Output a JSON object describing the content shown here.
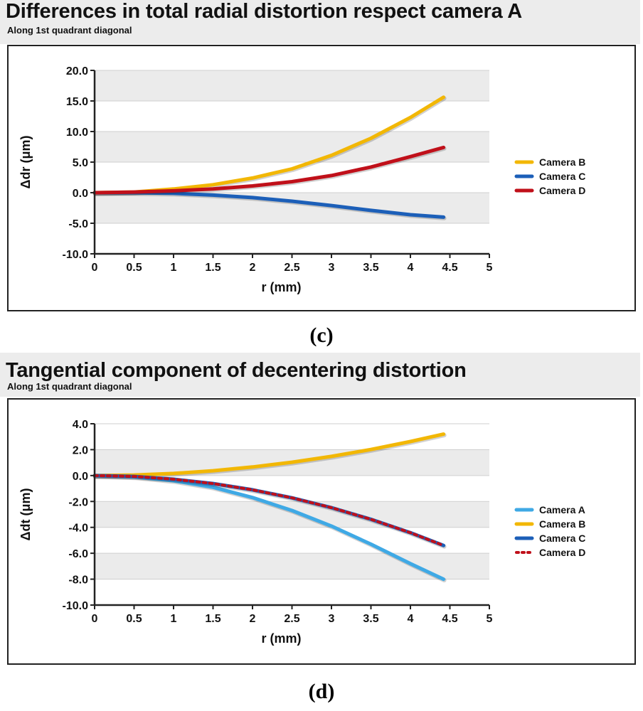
{
  "chart_data": [
    {
      "type": "line",
      "title": "Differences in total radial distortion respect camera A",
      "subtitle": "Along 1st quadrant diagonal",
      "xlabel": "r (mm)",
      "ylabel": "Δdr (μm)",
      "xlim": [
        0,
        5
      ],
      "ylim": [
        -10,
        20
      ],
      "xticks": [
        "0",
        "0.5",
        "1",
        "1.5",
        "2",
        "2.5",
        "3",
        "3.5",
        "4",
        "4.5",
        "5"
      ],
      "yticks": [
        "-10.0",
        "-5.0",
        "0.0",
        "5.0",
        "10.0",
        "15.0",
        "20.0"
      ],
      "x": [
        0,
        0.5,
        1,
        1.5,
        2,
        2.5,
        3,
        3.5,
        4,
        4.42
      ],
      "series": [
        {
          "name": "Camera B",
          "color": "#f2b705",
          "style": "solid",
          "values": [
            0,
            0.1,
            0.6,
            1.3,
            2.4,
            3.9,
            6.1,
            8.9,
            12.3,
            15.6
          ]
        },
        {
          "name": "Camera C",
          "color": "#1c5fb8",
          "style": "solid",
          "values": [
            0,
            0,
            -0.1,
            -0.4,
            -0.8,
            -1.4,
            -2.1,
            -2.9,
            -3.6,
            -4.0
          ]
        },
        {
          "name": "Camera D",
          "color": "#c0101a",
          "style": "solid",
          "values": [
            0,
            0.1,
            0.3,
            0.6,
            1.1,
            1.8,
            2.8,
            4.2,
            5.9,
            7.4
          ]
        }
      ],
      "legend": "right",
      "caption": "(c)"
    },
    {
      "type": "line",
      "title": "Tangential component of decentering distortion",
      "subtitle": "Along 1st quadrant diagonal",
      "xlabel": "r (mm)",
      "ylabel": "Δdt (μm)",
      "xlim": [
        0,
        5
      ],
      "ylim": [
        -10,
        4
      ],
      "xticks": [
        "0",
        "0.5",
        "1",
        "1.5",
        "2",
        "2.5",
        "3",
        "3.5",
        "4",
        "4.5",
        "5"
      ],
      "yticks": [
        "-10.0",
        "-8.0",
        "-6.0",
        "-4.0",
        "-2.0",
        "0.0",
        "2.0",
        "4.0"
      ],
      "x": [
        0,
        0.5,
        1,
        1.5,
        2,
        2.5,
        3,
        3.5,
        4,
        4.42
      ],
      "series": [
        {
          "name": "Camera A",
          "color": "#3fa9e5",
          "style": "solid",
          "values": [
            0,
            -0.1,
            -0.4,
            -0.9,
            -1.7,
            -2.7,
            -3.9,
            -5.3,
            -6.8,
            -8.0
          ]
        },
        {
          "name": "Camera B",
          "color": "#f2b705",
          "style": "solid",
          "values": [
            0,
            0.04,
            0.16,
            0.37,
            0.66,
            1.03,
            1.48,
            2.01,
            2.63,
            3.2
          ]
        },
        {
          "name": "Camera C",
          "color": "#1c5fb8",
          "style": "solid",
          "values": [
            0,
            -0.07,
            -0.28,
            -0.62,
            -1.1,
            -1.72,
            -2.48,
            -3.38,
            -4.41,
            -5.4
          ]
        },
        {
          "name": "Camera D",
          "color": "#c0101a",
          "style": "dotted",
          "values": [
            0,
            -0.07,
            -0.28,
            -0.62,
            -1.1,
            -1.72,
            -2.48,
            -3.38,
            -4.41,
            -5.4
          ]
        }
      ],
      "legend": "right",
      "caption": "(d)"
    }
  ]
}
